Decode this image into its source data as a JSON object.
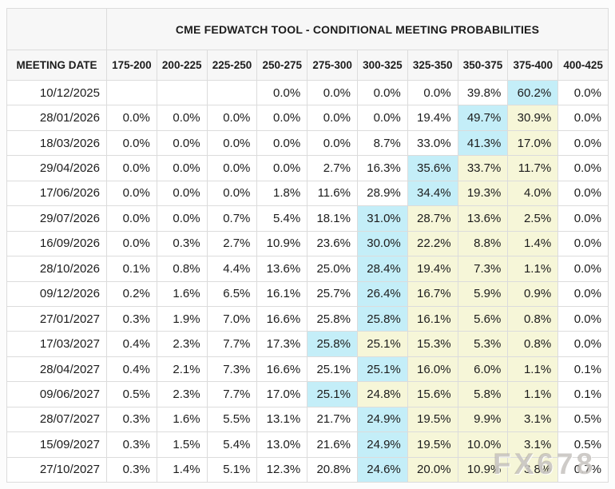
{
  "title": "CME FEDWATCH TOOL - CONDITIONAL MEETING PROBABILITIES",
  "watermark": "FX678",
  "colors": {
    "highlight_max": "#c4eef8",
    "highlight_mid": "#f6f6d8",
    "header_bg": "#f7f7f7",
    "border": "#dcdcdc",
    "page_bg": "#fcfcfc",
    "text": "#1c1c1c"
  },
  "table": {
    "date_header": "MEETING DATE",
    "rate_headers": [
      "175-200",
      "200-225",
      "225-250",
      "250-275",
      "275-300",
      "300-325",
      "325-350",
      "350-375",
      "375-400",
      "400-425"
    ],
    "rows": [
      {
        "date": "10/12/2025",
        "values": [
          "",
          "",
          "",
          "0.0%",
          "0.0%",
          "0.0%",
          "0.0%",
          "39.8%",
          "60.2%",
          "0.0%"
        ],
        "styles": [
          "n",
          "n",
          "n",
          "n",
          "n",
          "n",
          "n",
          "n",
          "c",
          "n"
        ]
      },
      {
        "date": "28/01/2026",
        "values": [
          "0.0%",
          "0.0%",
          "0.0%",
          "0.0%",
          "0.0%",
          "0.0%",
          "19.4%",
          "49.7%",
          "30.9%",
          "0.0%"
        ],
        "styles": [
          "n",
          "n",
          "n",
          "n",
          "n",
          "n",
          "n",
          "c",
          "y",
          "n"
        ]
      },
      {
        "date": "18/03/2026",
        "values": [
          "0.0%",
          "0.0%",
          "0.0%",
          "0.0%",
          "0.0%",
          "8.7%",
          "33.0%",
          "41.3%",
          "17.0%",
          "0.0%"
        ],
        "styles": [
          "n",
          "n",
          "n",
          "n",
          "n",
          "n",
          "n",
          "c",
          "y",
          "n"
        ]
      },
      {
        "date": "29/04/2026",
        "values": [
          "0.0%",
          "0.0%",
          "0.0%",
          "0.0%",
          "2.7%",
          "16.3%",
          "35.6%",
          "33.7%",
          "11.7%",
          "0.0%"
        ],
        "styles": [
          "n",
          "n",
          "n",
          "n",
          "n",
          "n",
          "c",
          "y",
          "y",
          "n"
        ]
      },
      {
        "date": "17/06/2026",
        "values": [
          "0.0%",
          "0.0%",
          "0.0%",
          "1.8%",
          "11.6%",
          "28.9%",
          "34.4%",
          "19.3%",
          "4.0%",
          "0.0%"
        ],
        "styles": [
          "n",
          "n",
          "n",
          "n",
          "n",
          "n",
          "c",
          "y",
          "y",
          "n"
        ]
      },
      {
        "date": "29/07/2026",
        "values": [
          "0.0%",
          "0.0%",
          "0.7%",
          "5.4%",
          "18.1%",
          "31.0%",
          "28.7%",
          "13.6%",
          "2.5%",
          "0.0%"
        ],
        "styles": [
          "n",
          "n",
          "n",
          "n",
          "n",
          "c",
          "y",
          "y",
          "y",
          "n"
        ]
      },
      {
        "date": "16/09/2026",
        "values": [
          "0.0%",
          "0.3%",
          "2.7%",
          "10.9%",
          "23.6%",
          "30.0%",
          "22.2%",
          "8.8%",
          "1.4%",
          "0.0%"
        ],
        "styles": [
          "n",
          "n",
          "n",
          "n",
          "n",
          "c",
          "y",
          "y",
          "y",
          "n"
        ]
      },
      {
        "date": "28/10/2026",
        "values": [
          "0.1%",
          "0.8%",
          "4.4%",
          "13.6%",
          "25.0%",
          "28.4%",
          "19.4%",
          "7.3%",
          "1.1%",
          "0.0%"
        ],
        "styles": [
          "n",
          "n",
          "n",
          "n",
          "n",
          "c",
          "y",
          "y",
          "y",
          "n"
        ]
      },
      {
        "date": "09/12/2026",
        "values": [
          "0.2%",
          "1.6%",
          "6.5%",
          "16.1%",
          "25.7%",
          "26.4%",
          "16.7%",
          "5.9%",
          "0.9%",
          "0.0%"
        ],
        "styles": [
          "n",
          "n",
          "n",
          "n",
          "n",
          "c",
          "y",
          "y",
          "y",
          "n"
        ]
      },
      {
        "date": "27/01/2027",
        "values": [
          "0.3%",
          "1.9%",
          "7.0%",
          "16.6%",
          "25.8%",
          "25.8%",
          "16.1%",
          "5.6%",
          "0.8%",
          "0.0%"
        ],
        "styles": [
          "n",
          "n",
          "n",
          "n",
          "n",
          "c",
          "y",
          "y",
          "y",
          "n"
        ]
      },
      {
        "date": "17/03/2027",
        "values": [
          "0.4%",
          "2.3%",
          "7.7%",
          "17.3%",
          "25.8%",
          "25.1%",
          "15.3%",
          "5.3%",
          "0.8%",
          "0.0%"
        ],
        "styles": [
          "n",
          "n",
          "n",
          "n",
          "c",
          "y",
          "y",
          "y",
          "y",
          "n"
        ]
      },
      {
        "date": "28/04/2027",
        "values": [
          "0.4%",
          "2.1%",
          "7.3%",
          "16.6%",
          "25.1%",
          "25.1%",
          "16.0%",
          "6.0%",
          "1.1%",
          "0.1%"
        ],
        "styles": [
          "n",
          "n",
          "n",
          "n",
          "n",
          "c",
          "y",
          "y",
          "y",
          "n"
        ]
      },
      {
        "date": "09/06/2027",
        "values": [
          "0.5%",
          "2.3%",
          "7.7%",
          "17.0%",
          "25.1%",
          "24.8%",
          "15.6%",
          "5.8%",
          "1.1%",
          "0.1%"
        ],
        "styles": [
          "n",
          "n",
          "n",
          "n",
          "c",
          "y",
          "y",
          "y",
          "y",
          "n"
        ]
      },
      {
        "date": "28/07/2027",
        "values": [
          "0.3%",
          "1.6%",
          "5.5%",
          "13.1%",
          "21.7%",
          "24.9%",
          "19.5%",
          "9.9%",
          "3.1%",
          "0.5%"
        ],
        "styles": [
          "n",
          "n",
          "n",
          "n",
          "n",
          "c",
          "y",
          "y",
          "y",
          "n"
        ]
      },
      {
        "date": "15/09/2027",
        "values": [
          "0.3%",
          "1.5%",
          "5.4%",
          "13.0%",
          "21.6%",
          "24.9%",
          "19.5%",
          "10.0%",
          "3.1%",
          "0.5%"
        ],
        "styles": [
          "n",
          "n",
          "n",
          "n",
          "n",
          "c",
          "y",
          "y",
          "y",
          "n"
        ]
      },
      {
        "date": "27/10/2027",
        "values": [
          "0.3%",
          "1.4%",
          "5.1%",
          "12.3%",
          "20.8%",
          "24.6%",
          "20.0%",
          "10.9%",
          "3.8%",
          "0.7%"
        ],
        "styles": [
          "n",
          "n",
          "n",
          "n",
          "n",
          "c",
          "y",
          "y",
          "y",
          "n"
        ]
      }
    ]
  }
}
